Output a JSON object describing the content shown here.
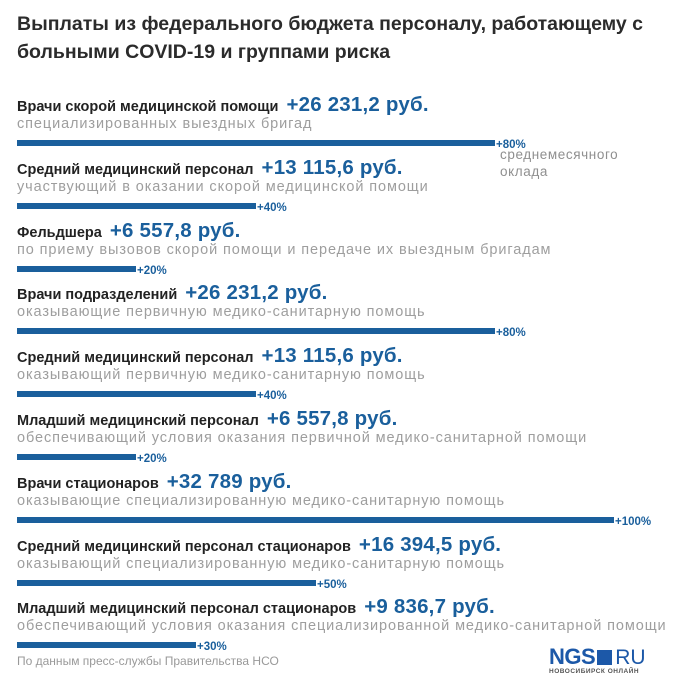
{
  "title": "Выплаты из федерального бюджета персоналу, работающему с больными COVID-19 и группами риска",
  "note": "среднемесячного оклада",
  "source": "По данным пресс-службы Правительства НСО",
  "logo": {
    "main": "NGS",
    "suffix": "RU",
    "tagline": "НОВОСИБИРСК ОНЛАЙН"
  },
  "colors": {
    "accent": "#1a5f9c",
    "category": "#222222",
    "subtitle": "#9e9e9e",
    "logo": "#1c58a8"
  },
  "chart_data": {
    "type": "bar",
    "orientation": "horizontal",
    "title": "Выплаты из федерального бюджета персоналу, работающему с больными COVID-19 и группами риска",
    "value_unit": "% среднемесячного оклада",
    "max_value": 100,
    "items": [
      {
        "category": "Врачи скорой медицинской помощи",
        "amount": "+26 231,2 руб.",
        "amount_rub": 26231.2,
        "subtitle": "специализированных выездных бригад",
        "percent": 80,
        "percent_label": "+80%"
      },
      {
        "category": "Средний медицинский персонал",
        "amount": "+13 115,6 руб.",
        "amount_rub": 13115.6,
        "subtitle": "участвующий в оказании скорой медицинской помощи",
        "percent": 40,
        "percent_label": "+40%"
      },
      {
        "category": "Фельдшера",
        "amount": "+6 557,8 руб.",
        "amount_rub": 6557.8,
        "subtitle": "по приему вызовов скорой помощи и передаче их выездным бригадам",
        "percent": 20,
        "percent_label": "+20%"
      },
      {
        "category": "Врачи подразделений",
        "amount": "+26 231,2 руб.",
        "amount_rub": 26231.2,
        "subtitle": "оказывающие первичную медико-санитарную помощь",
        "percent": 80,
        "percent_label": "+80%"
      },
      {
        "category": "Средний медицинский персонал",
        "amount": "+13 115,6 руб.",
        "amount_rub": 13115.6,
        "subtitle": "оказывающий первичную медико-санитарную помощь",
        "percent": 40,
        "percent_label": "+40%"
      },
      {
        "category": "Младший медицинский персонал",
        "amount": "+6 557,8 руб.",
        "amount_rub": 6557.8,
        "subtitle": "обеспечивающий условия оказания первичной медико-санитарной помощи",
        "percent": 20,
        "percent_label": "+20%"
      },
      {
        "category": "Врачи стационаров",
        "amount": "+32 789 руб.",
        "amount_rub": 32789,
        "subtitle": "оказывающие специализированную медико-санитарную помощь",
        "percent": 100,
        "percent_label": "+100%"
      },
      {
        "category": "Средний медицинский персонал стационаров",
        "amount": "+16 394,5 руб.",
        "amount_rub": 16394.5,
        "subtitle": "оказывающий специализированную медико-санитарную помощь",
        "percent": 50,
        "percent_label": "+50%"
      },
      {
        "category": "Младший медицинский персонал стационаров",
        "amount": "+9 836,7 руб.",
        "amount_rub": 9836.7,
        "subtitle": "обеспечивающий условия оказания специализированной медико-санитарной помощи",
        "percent": 30,
        "percent_label": "+30%"
      }
    ]
  }
}
